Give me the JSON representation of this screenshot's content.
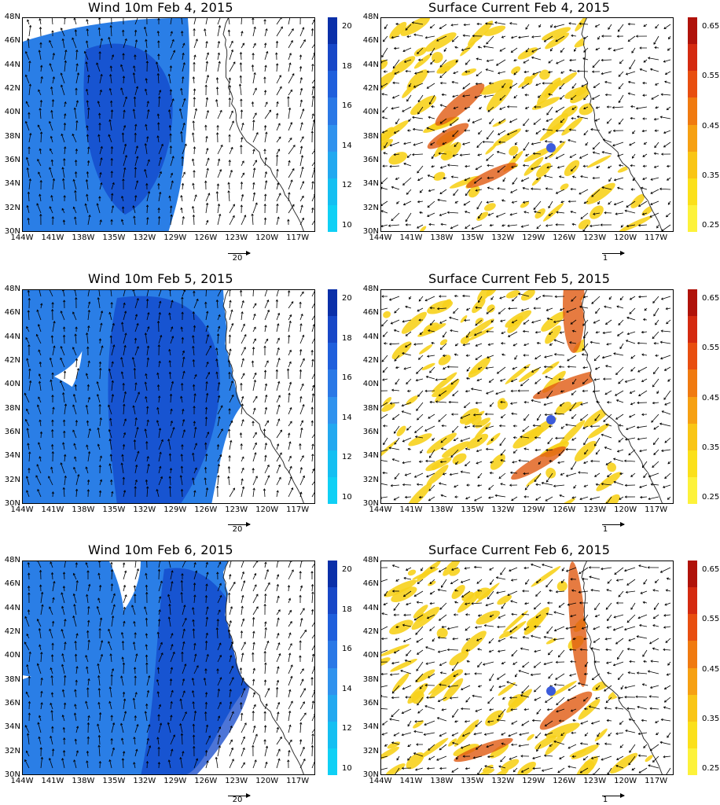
{
  "panels": [
    {
      "title": "Wind 10m Feb 4, 2015",
      "ref_vector_label": "20"
    },
    {
      "title": "Surface Current Feb 4, 2015",
      "ref_vector_label": "1"
    },
    {
      "title": "Wind 10m Feb 5, 2015",
      "ref_vector_label": "20"
    },
    {
      "title": "Surface Current Feb 5, 2015",
      "ref_vector_label": "1"
    },
    {
      "title": "Wind 10m Feb 6, 2015",
      "ref_vector_label": "20"
    },
    {
      "title": "Surface Current Feb 6, 2015",
      "ref_vector_label": "1"
    }
  ],
  "lat_labels": [
    "48N",
    "46N",
    "44N",
    "42N",
    "40N",
    "38N",
    "36N",
    "34N",
    "32N",
    "30N"
  ],
  "lon_labels": [
    "144W",
    "141W",
    "138W",
    "135W",
    "132W",
    "129W",
    "126W",
    "123W",
    "120W",
    "117W"
  ],
  "wind_colorbar": {
    "ticks": [
      "20",
      "18",
      "16",
      "14",
      "12",
      "10"
    ],
    "colors": [
      "#0a2fa8",
      "#1747c7",
      "#1f5fdc",
      "#2a78e6",
      "#2f92ee",
      "#22a8f0",
      "#14bff2",
      "#0fd0f5"
    ]
  },
  "current_colorbar": {
    "ticks": [
      "0.65",
      "0.55",
      "0.45",
      "0.35",
      "0.25"
    ],
    "colors": [
      "#b0120a",
      "#d42a10",
      "#e84e10",
      "#f07a10",
      "#f6a012",
      "#f9c515",
      "#fbe01a",
      "#fdf23a"
    ]
  },
  "colors": {
    "wind_fill": "#2a7ee6",
    "wind_core": "#1247c9",
    "current_fill": "#f7d21c",
    "current_core": "#e05a12",
    "marker": "#3b5bdb"
  }
}
